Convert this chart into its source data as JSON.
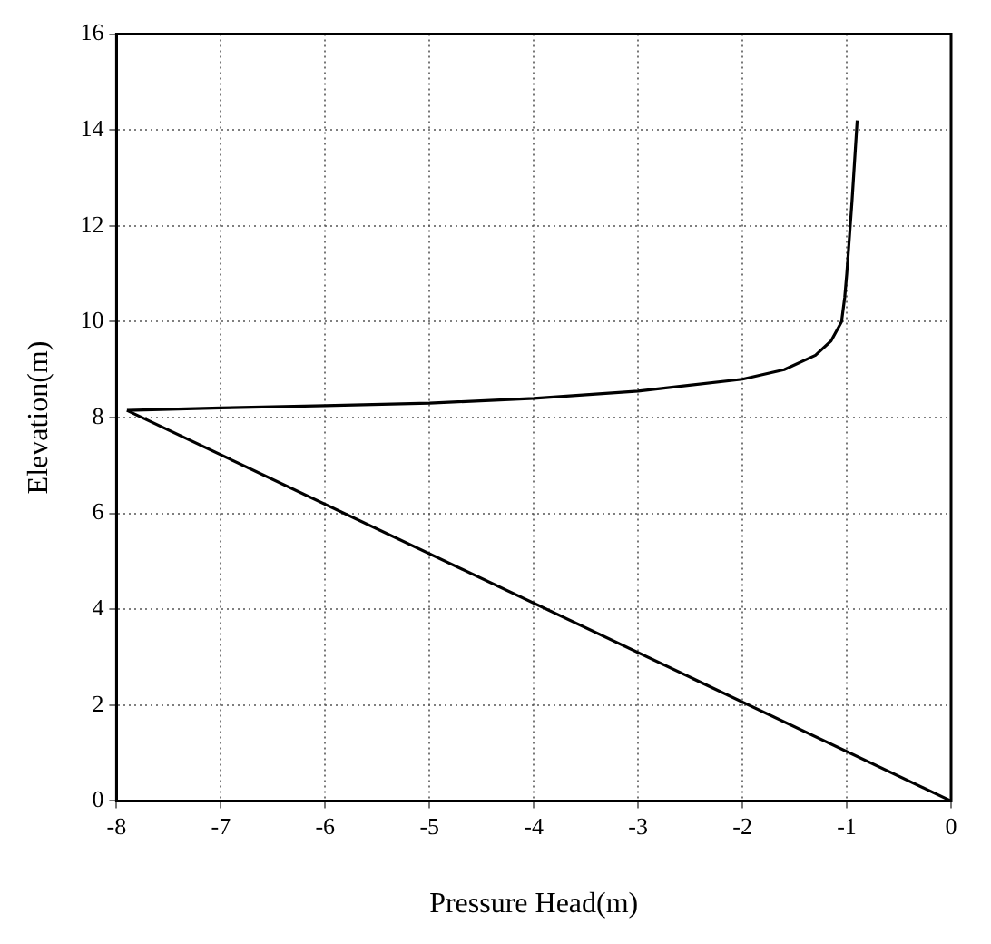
{
  "chart_data": {
    "type": "line",
    "xlabel": "Pressure Head(m)",
    "ylabel": "Elevation(m)",
    "series": [
      {
        "color": "#000000",
        "x": [
          -7.9,
          -7,
          -6,
          -5,
          -4,
          -3,
          -2,
          -1.6,
          -1.3,
          -1.15,
          -1.05,
          -1.02,
          -1,
          -0.95,
          -0.9
        ],
        "values": [
          8.15,
          8.2,
          8.25,
          8.3,
          8.4,
          8.55,
          8.8,
          9.0,
          9.3,
          9.6,
          10,
          10.5,
          11,
          12.5,
          14.2
        ]
      },
      {
        "color": "#000000",
        "x": [
          -7.9,
          0
        ],
        "values": [
          8.15,
          0
        ]
      }
    ],
    "xlim": [
      -8,
      0
    ],
    "xticks": [
      -8,
      -7,
      -6,
      -5,
      -4,
      -3,
      -2,
      -1,
      0
    ],
    "ylim": [
      0,
      16
    ],
    "yticks": [
      0,
      2,
      4,
      6,
      8,
      10,
      12,
      14,
      16
    ],
    "grid": true,
    "legend": false,
    "marker": "none",
    "line_style": "solid"
  }
}
